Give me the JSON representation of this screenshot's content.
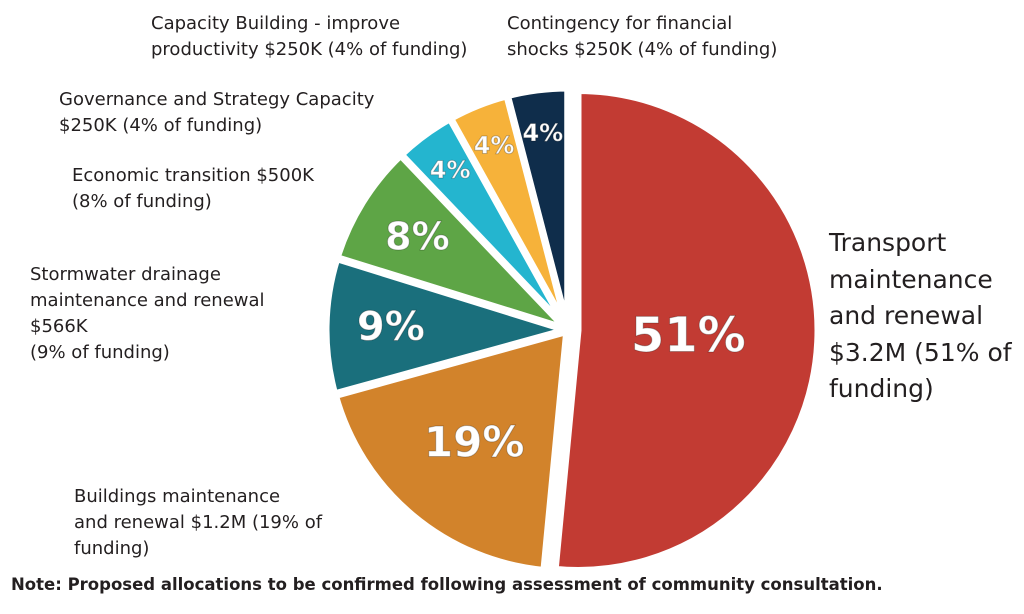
{
  "chart_data": {
    "type": "pie",
    "title": "",
    "slices": [
      {
        "label_lines": [
          "Transport",
          "maintenance",
          "and renewal",
          "$3.2M (51% of",
          "funding)"
        ],
        "amount": "$3.2M",
        "percent": 51,
        "pct_label": "51%",
        "color": "#c23b33"
      },
      {
        "label_lines": [
          "Buildings maintenance",
          "and renewal $1.2M (19% of",
          "funding)"
        ],
        "amount": "$1.2M",
        "percent": 19,
        "pct_label": "19%",
        "color": "#d2832b"
      },
      {
        "label_lines": [
          "Stormwater drainage",
          "maintenance and renewal",
          "$566K",
          "(9% of funding)"
        ],
        "amount": "$566K",
        "percent": 9,
        "pct_label": "9%",
        "color": "#1a6f7c"
      },
      {
        "label_lines": [
          "Economic transition $500K",
          "(8% of funding)"
        ],
        "amount": "$500K",
        "percent": 8,
        "pct_label": "8%",
        "color": "#5ea546"
      },
      {
        "label_lines": [
          "Governance and Strategy Capacity",
          "$250K (4% of funding)"
        ],
        "amount": "$250K",
        "percent": 4,
        "pct_label": "4%",
        "color": "#24b5cf"
      },
      {
        "label_lines": [
          "Capacity Building - improve",
          "productivity $250K (4% of funding)"
        ],
        "amount": "$250K",
        "percent": 4,
        "pct_label": "4%",
        "color": "#f6b23a"
      },
      {
        "label_lines": [
          "Contingency for financial",
          "shocks $250K (4% of funding)"
        ],
        "amount": "$250K",
        "percent": 4,
        "pct_label": "4%",
        "color": "#0f2d4b"
      }
    ],
    "legend": "none",
    "note": "Note: Proposed allocations to be confirmed following assessment of community consultation."
  }
}
